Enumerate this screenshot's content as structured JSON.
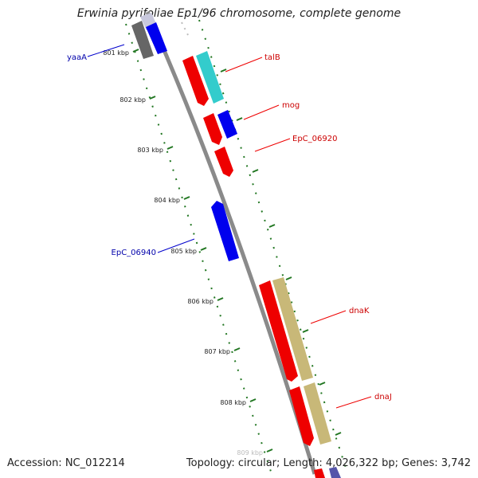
{
  "title": "Erwinia pyrifoliae Ep1/96 chromosome, complete genome",
  "footer": {
    "accession": "Accession: NC_012214",
    "summary": "Topology: circular; Length: 4,026,322 bp; Genes: 3,742"
  },
  "ticks": [
    "801 kbp",
    "802 kbp",
    "803 kbp",
    "804 kbp",
    "805 kbp",
    "806 kbp",
    "807 kbp",
    "808 kbp",
    "809 kbp"
  ],
  "gene_labels": [
    {
      "name": "yaaA",
      "color": "#0000aa"
    },
    {
      "name": "talB",
      "color": "#cc0000"
    },
    {
      "name": "mog",
      "color": "#cc0000"
    },
    {
      "name": "EpC_06920",
      "color": "#cc0000"
    },
    {
      "name": "EpC_06940",
      "color": "#0000aa"
    },
    {
      "name": "dnaK",
      "color": "#cc0000"
    },
    {
      "name": "dnaJ",
      "color": "#cc0000"
    }
  ],
  "colors": {
    "forward": "#ee0000",
    "reverse": "#0000ee",
    "rna": "#44cccc",
    "cds_track": "#c8b878",
    "backbone": "#888888",
    "tick": "#227722",
    "label_link_red": "#ee0000",
    "label_link_blue": "#0000cc"
  }
}
